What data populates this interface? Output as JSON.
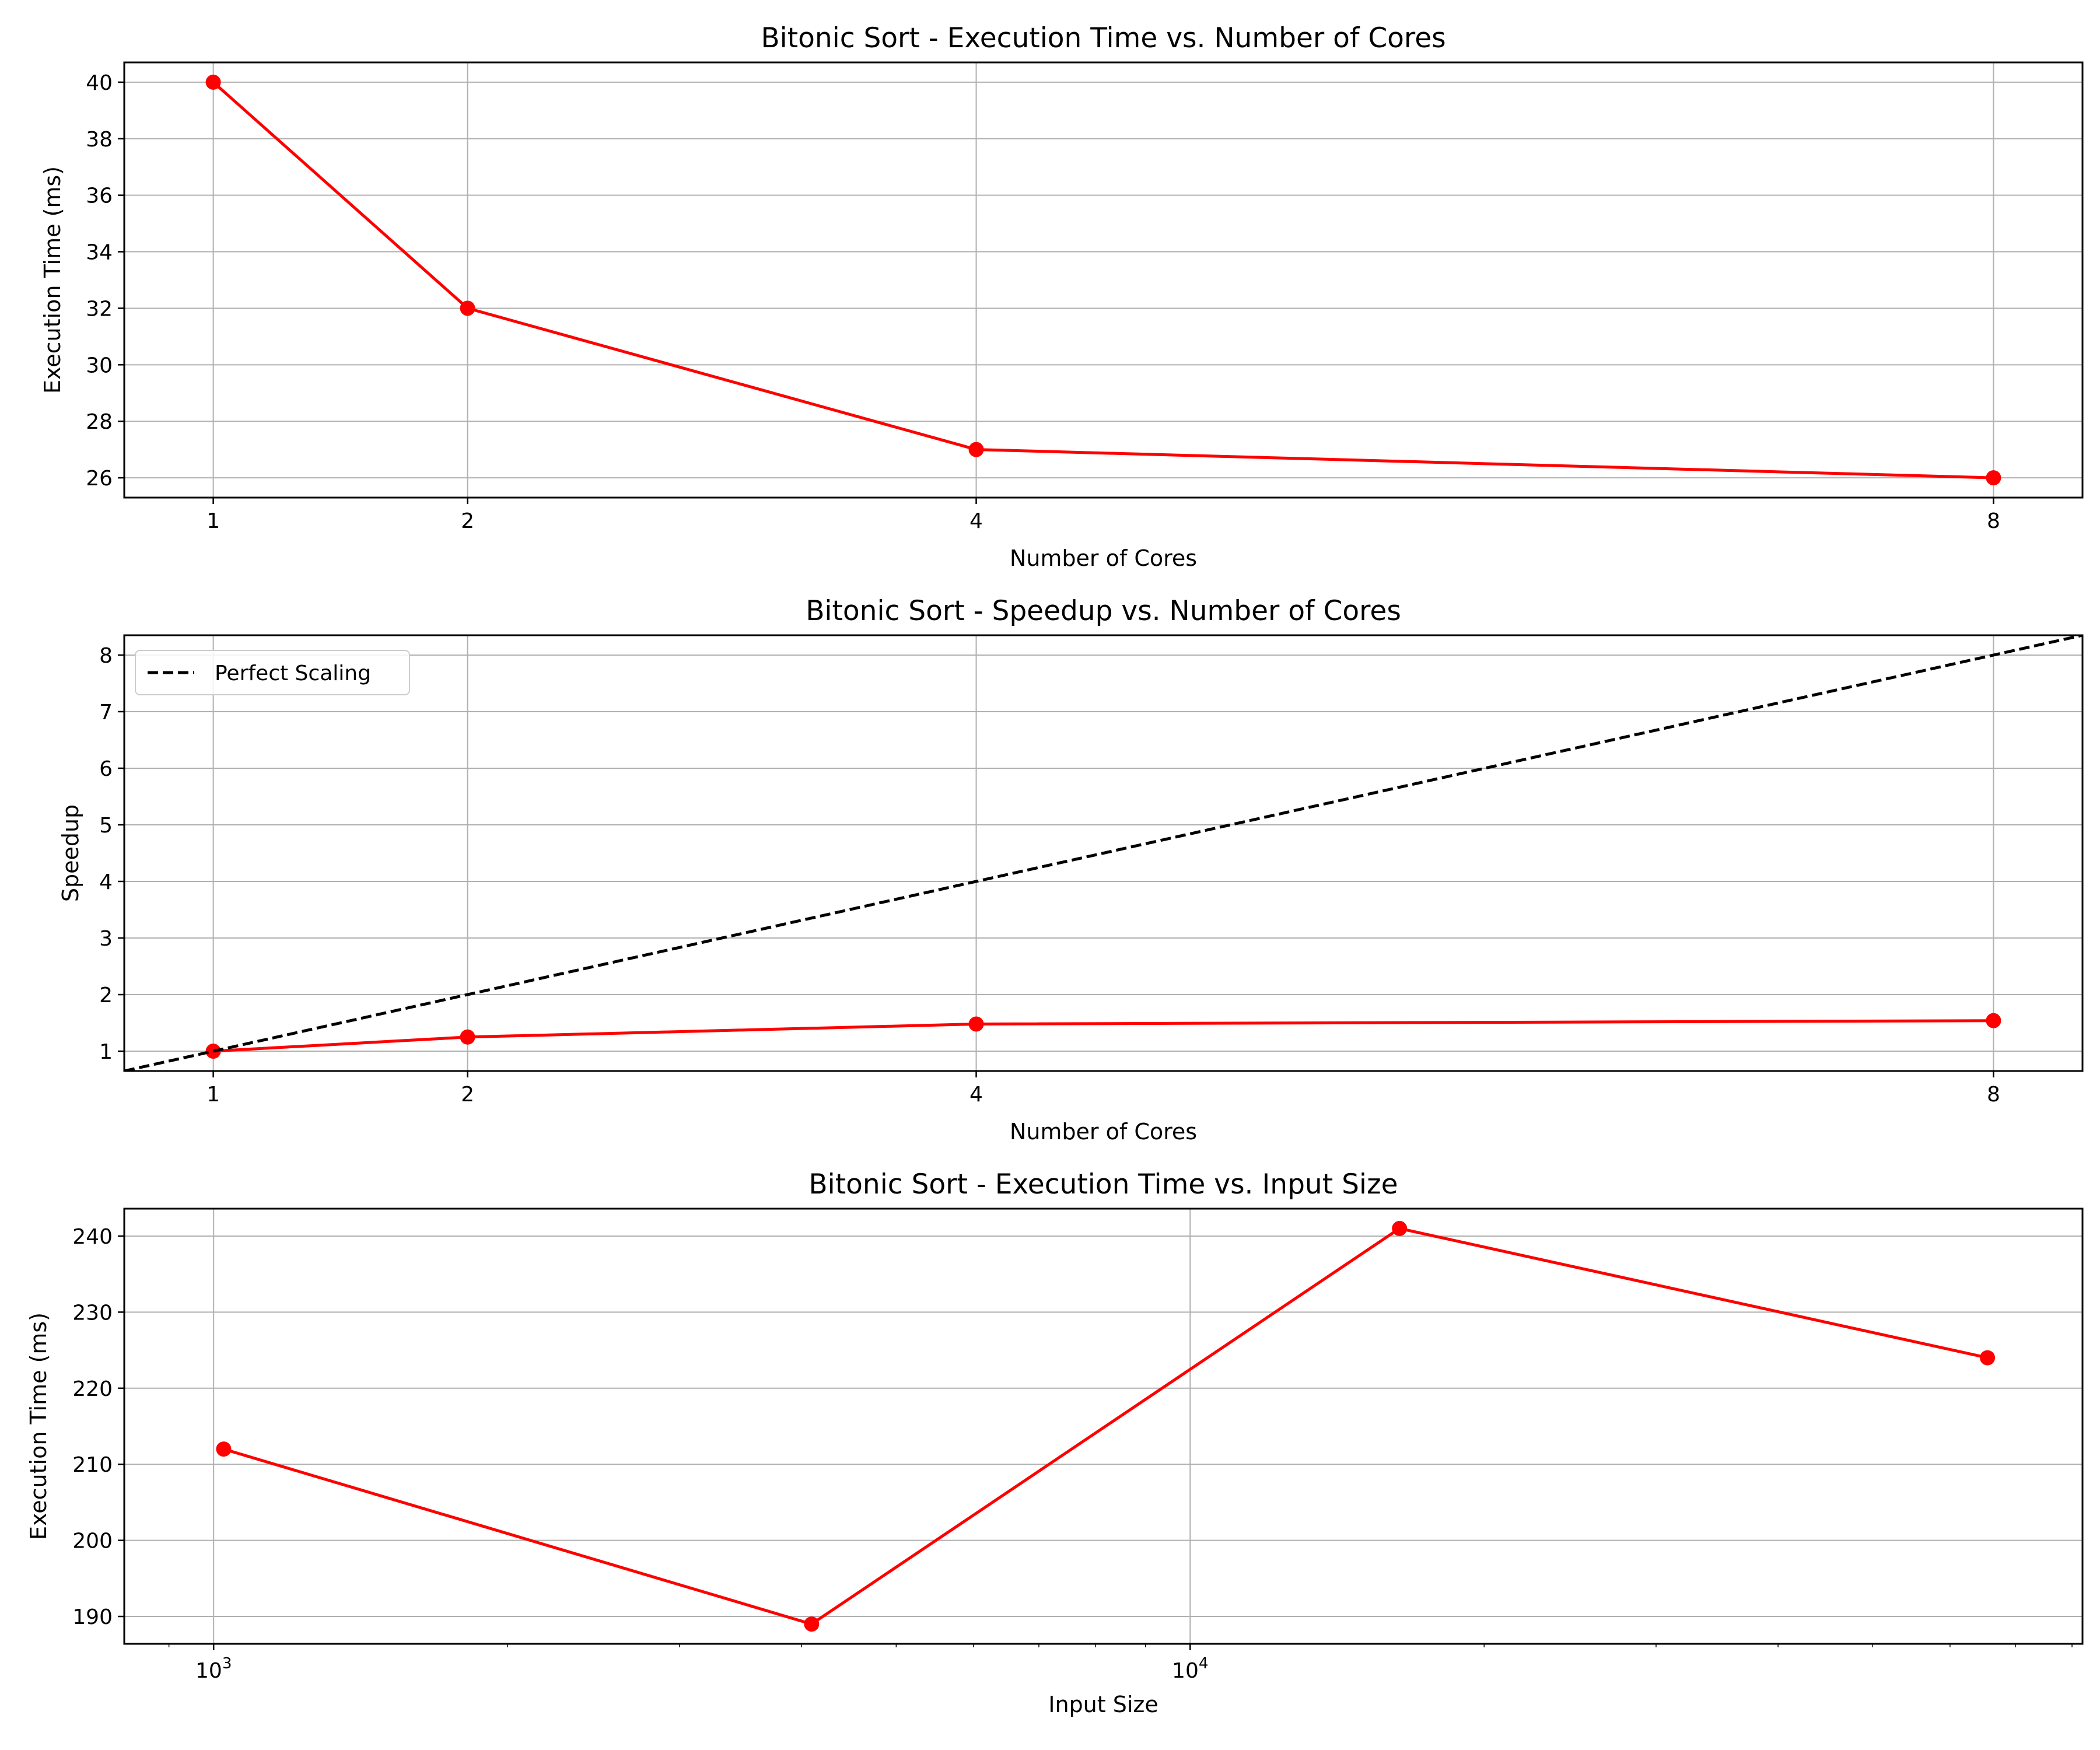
{
  "chart_data": [
    {
      "type": "line",
      "title": "Bitonic Sort - Execution Time vs. Number of Cores",
      "xlabel": "Number of Cores",
      "ylabel": "Execution Time (ms)",
      "xscale": "linear",
      "xlim": [
        0.65,
        8.35
      ],
      "ylim": [
        25.3,
        40.7
      ],
      "xticks": [
        1,
        2,
        4,
        8
      ],
      "xtick_labels": [
        "1",
        "2",
        "4",
        "8"
      ],
      "yticks": [
        26,
        28,
        30,
        32,
        34,
        36,
        38,
        40
      ],
      "ytick_labels": [
        "26",
        "28",
        "30",
        "32",
        "34",
        "36",
        "38",
        "40"
      ],
      "grid": true,
      "legend": null,
      "series": [
        {
          "x": [
            1,
            2,
            4,
            8
          ],
          "y": [
            40,
            32,
            27,
            26
          ],
          "color": "#ff0000",
          "marker": "circle",
          "linestyle": "solid"
        }
      ]
    },
    {
      "type": "line",
      "title": "Bitonic Sort - Speedup vs. Number of Cores",
      "xlabel": "Number of Cores",
      "ylabel": "Speedup",
      "xscale": "linear",
      "xlim": [
        0.65,
        8.35
      ],
      "ylim": [
        0.65,
        8.35
      ],
      "xticks": [
        1,
        2,
        4,
        8
      ],
      "xtick_labels": [
        "1",
        "2",
        "4",
        "8"
      ],
      "yticks": [
        1,
        2,
        3,
        4,
        5,
        6,
        7,
        8
      ],
      "ytick_labels": [
        "1",
        "2",
        "3",
        "4",
        "5",
        "6",
        "7",
        "8"
      ],
      "grid": true,
      "legend": "top-left",
      "series": [
        {
          "x": [
            1,
            2,
            4,
            8
          ],
          "y": [
            1.0,
            1.25,
            1.48,
            1.54
          ],
          "color": "#ff0000",
          "marker": "circle",
          "linestyle": "solid"
        },
        {
          "name": "Perfect Scaling",
          "x": [
            0.65,
            8.35
          ],
          "y": [
            0.65,
            8.35
          ],
          "color": "#000000",
          "marker": "none",
          "linestyle": "dashed"
        }
      ]
    },
    {
      "type": "line",
      "title": "Bitonic Sort - Execution Time vs. Input Size",
      "xlabel": "Input Size",
      "ylabel": "Execution Time (ms)",
      "xscale": "log",
      "xlim": [
        810,
        82000
      ],
      "ylim": [
        186.4,
        243.6
      ],
      "xticks": [
        1000,
        10000
      ],
      "xtick_labels": [
        "10^3",
        "10^4"
      ],
      "yticks": [
        190,
        200,
        210,
        220,
        230,
        240
      ],
      "ytick_labels": [
        "190",
        "200",
        "210",
        "220",
        "230",
        "240"
      ],
      "grid": true,
      "legend": null,
      "series": [
        {
          "x": [
            1024,
            4096,
            16384,
            65536
          ],
          "y": [
            212,
            189,
            241,
            224
          ],
          "color": "#ff0000",
          "marker": "circle",
          "linestyle": "solid"
        }
      ]
    }
  ]
}
